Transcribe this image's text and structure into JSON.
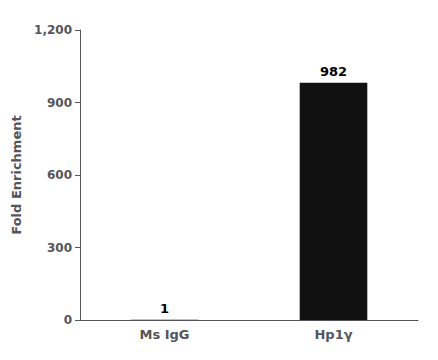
{
  "chart_data": {
    "type": "bar",
    "categories": [
      "Ms IgG",
      "Hp1γ"
    ],
    "values": [
      1,
      982
    ],
    "color": "#111111",
    "ylabel": "Fold Enrichment",
    "ylim": [
      0,
      1200
    ],
    "yticks": [
      0,
      300,
      600,
      900,
      1200
    ],
    "data_labels": true,
    "grid": false
  }
}
